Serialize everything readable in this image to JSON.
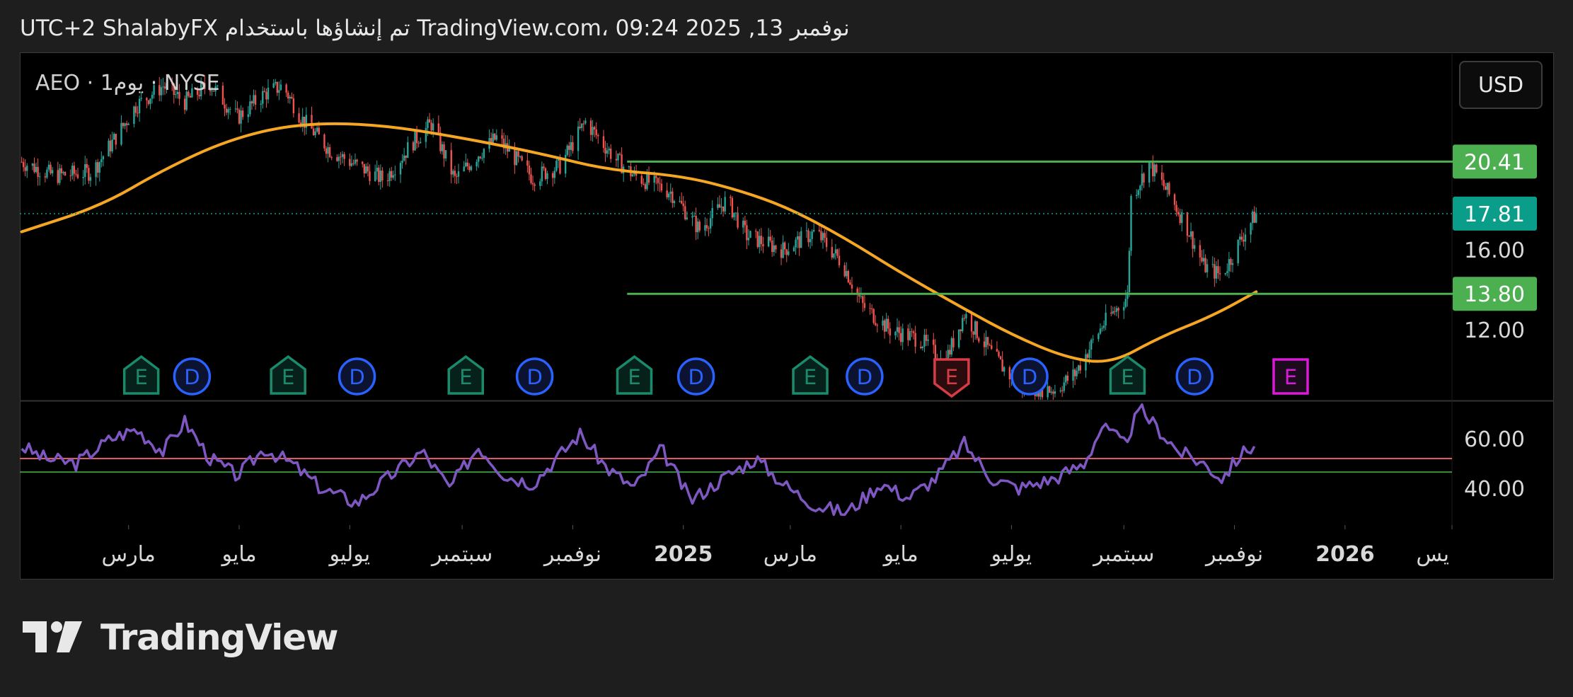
{
  "header": {
    "caption": "UTC+2 ShalabyFX تم إنشاؤها باستخدام TradingView.com، 09:24 2025 ,13 نوفمبر"
  },
  "symbol_label": "AEO · 1يوم · NYSE",
  "currency": "USD",
  "footer": {
    "brand": "TradingView"
  },
  "colors": {
    "up": "#26a69a",
    "down": "#ef5350",
    "ma": "#f5a623",
    "level_lines": "#4caf50",
    "rsi": "#7e57c2",
    "rsi_upper": "#e05a66",
    "rsi_lower": "#3e8e41",
    "earnings": "#1b8a6b",
    "earnings_future": "#d81bd8",
    "earnings_miss": "#d73c45",
    "dividend": "#2962ff",
    "current_price_tag": "#0a9d8a"
  },
  "chart_data": {
    "type": "candlestick",
    "symbol": "AEO",
    "exchange": "NYSE",
    "interval": "1يوم",
    "price_axis": {
      "ticks": [
        "16.00",
        "12.00"
      ],
      "ylim": [
        8.5,
        25.8
      ]
    },
    "x_axis": {
      "labels": [
        "مارس",
        "مايو",
        "يوليو",
        "سبتمبر",
        "نوفمبر",
        "2025",
        "مارس",
        "مايو",
        "يوليو",
        "سبتمبر",
        "نوفمبر",
        "2026",
        "يس"
      ],
      "label_dates": [
        "2024-03-01",
        "2024-05-01",
        "2024-07-01",
        "2024-09-01",
        "2024-11-01",
        "2025-01-01",
        "2025-03-01",
        "2025-05-01",
        "2025-07-01",
        "2025-09-01",
        "2025-11-01",
        "2026-01-01",
        "2026-03-01"
      ],
      "bold": [
        "2025",
        "2026"
      ],
      "range": [
        "2024-01-01",
        "2026-03-01"
      ]
    },
    "series": {
      "close_path": [
        [
          "2024-01-02",
          20.4
        ],
        [
          "2024-01-20",
          19.7
        ],
        [
          "2024-02-10",
          19.9
        ],
        [
          "2024-02-25",
          21.9
        ],
        [
          "2024-03-05",
          23.2
        ],
        [
          "2024-03-20",
          24.2
        ],
        [
          "2024-04-01",
          23.4
        ],
        [
          "2024-04-15",
          24.3
        ],
        [
          "2024-04-30",
          22.6
        ],
        [
          "2024-05-15",
          23.8
        ],
        [
          "2024-05-25",
          24.2
        ],
        [
          "2024-06-05",
          22.5
        ],
        [
          "2024-06-20",
          21.0
        ],
        [
          "2024-07-05",
          20.2
        ],
        [
          "2024-07-20",
          19.5
        ],
        [
          "2024-08-05",
          21.4
        ],
        [
          "2024-08-15",
          22.3
        ],
        [
          "2024-08-28",
          19.5
        ],
        [
          "2024-09-10",
          20.8
        ],
        [
          "2024-09-20",
          21.6
        ],
        [
          "2024-10-10",
          19.6
        ],
        [
          "2024-10-25",
          20.2
        ],
        [
          "2024-11-08",
          22.4
        ],
        [
          "2024-11-25",
          20.5
        ],
        [
          "2024-12-05",
          19.7
        ],
        [
          "2024-12-25",
          18.9
        ],
        [
          "2025-01-10",
          17.0
        ],
        [
          "2025-01-25",
          18.5
        ],
        [
          "2025-02-05",
          16.7
        ],
        [
          "2025-02-25",
          16.0
        ],
        [
          "2025-03-15",
          16.9
        ],
        [
          "2025-03-30",
          15.3
        ],
        [
          "2025-04-10",
          13.2
        ],
        [
          "2025-04-25",
          12.0
        ],
        [
          "2025-05-12",
          11.5
        ],
        [
          "2025-05-25",
          10.3
        ],
        [
          "2025-06-05",
          12.8
        ],
        [
          "2025-06-20",
          10.8
        ],
        [
          "2025-07-05",
          9.2
        ],
        [
          "2025-07-25",
          9.0
        ],
        [
          "2025-08-05",
          9.8
        ],
        [
          "2025-08-20",
          12.2
        ],
        [
          "2025-09-03",
          13.7
        ],
        [
          "2025-09-05",
          18.6
        ],
        [
          "2025-09-15",
          20.3
        ],
        [
          "2025-09-25",
          18.9
        ],
        [
          "2025-10-05",
          17.3
        ],
        [
          "2025-10-15",
          15.2
        ],
        [
          "2025-10-25",
          14.7
        ],
        [
          "2025-11-05",
          16.6
        ],
        [
          "2025-11-13",
          17.81
        ]
      ],
      "moving_average": [
        [
          "2024-01-02",
          16.9
        ],
        [
          "2024-02-15",
          18.2
        ],
        [
          "2024-03-20",
          20.0
        ],
        [
          "2024-04-25",
          21.5
        ],
        [
          "2024-06-01",
          22.3
        ],
        [
          "2024-07-15",
          22.3
        ],
        [
          "2024-09-01",
          21.6
        ],
        [
          "2024-10-15",
          20.8
        ],
        [
          "2024-11-20",
          20.0
        ],
        [
          "2024-12-31",
          19.7
        ],
        [
          "2025-01-31",
          19.0
        ],
        [
          "2025-02-28",
          18.1
        ],
        [
          "2025-03-31",
          16.6
        ],
        [
          "2025-04-30",
          14.9
        ],
        [
          "2025-05-31",
          13.3
        ],
        [
          "2025-06-30",
          11.8
        ],
        [
          "2025-07-31",
          10.6
        ],
        [
          "2025-08-25",
          10.3
        ],
        [
          "2025-09-20",
          11.6
        ],
        [
          "2025-10-20",
          12.7
        ],
        [
          "2025-11-13",
          13.9
        ]
      ]
    },
    "current_price": 17.81,
    "horizontal_levels": [
      {
        "price": 20.41,
        "label": "20.41",
        "from": "2024-12-01"
      },
      {
        "price": 13.8,
        "label": "13.80",
        "from": "2024-12-01"
      }
    ],
    "events": [
      {
        "type": "E",
        "date": "2024-03-08"
      },
      {
        "type": "D",
        "date": "2024-04-05"
      },
      {
        "type": "E",
        "date": "2024-05-28"
      },
      {
        "type": "D",
        "date": "2024-07-05"
      },
      {
        "type": "E",
        "date": "2024-09-03"
      },
      {
        "type": "D",
        "date": "2024-10-11"
      },
      {
        "type": "E",
        "date": "2024-12-05"
      },
      {
        "type": "D",
        "date": "2025-01-08"
      },
      {
        "type": "E",
        "date": "2025-03-12"
      },
      {
        "type": "D",
        "date": "2025-04-11"
      },
      {
        "type": "E",
        "date": "2025-05-29",
        "variant": "miss"
      },
      {
        "type": "D",
        "date": "2025-07-11"
      },
      {
        "type": "E",
        "date": "2025-09-03"
      },
      {
        "type": "D",
        "date": "2025-10-10"
      },
      {
        "type": "E",
        "date": "2025-12-02",
        "variant": "future"
      }
    ],
    "rsi": {
      "ticks": [
        "60.00",
        "40.00"
      ],
      "ylim": [
        25,
        75
      ],
      "upper_level": 52,
      "lower_level": 46.5,
      "path": [
        [
          "2024-01-02",
          57
        ],
        [
          "2024-01-15",
          52
        ],
        [
          "2024-02-01",
          50
        ],
        [
          "2024-02-20",
          60
        ],
        [
          "2024-03-05",
          64
        ],
        [
          "2024-03-20",
          55
        ],
        [
          "2024-04-01",
          67
        ],
        [
          "2024-04-15",
          52
        ],
        [
          "2024-04-30",
          45
        ],
        [
          "2024-05-15",
          56
        ],
        [
          "2024-05-30",
          50
        ],
        [
          "2024-06-15",
          40
        ],
        [
          "2024-07-05",
          34
        ],
        [
          "2024-07-25",
          46
        ],
        [
          "2024-08-10",
          55
        ],
        [
          "2024-08-25",
          40
        ],
        [
          "2024-09-10",
          57
        ],
        [
          "2024-09-25",
          45
        ],
        [
          "2024-10-10",
          42
        ],
        [
          "2024-11-05",
          62
        ],
        [
          "2024-11-20",
          48
        ],
        [
          "2024-12-05",
          40
        ],
        [
          "2024-12-20",
          56
        ],
        [
          "2025-01-05",
          35
        ],
        [
          "2025-01-25",
          45
        ],
        [
          "2025-02-10",
          52
        ],
        [
          "2025-02-28",
          40
        ],
        [
          "2025-03-15",
          33
        ],
        [
          "2025-04-01",
          30
        ],
        [
          "2025-04-20",
          42
        ],
        [
          "2025-05-05",
          36
        ],
        [
          "2025-05-20",
          44
        ],
        [
          "2025-06-05",
          58
        ],
        [
          "2025-06-20",
          44
        ],
        [
          "2025-07-05",
          40
        ],
        [
          "2025-07-25",
          44
        ],
        [
          "2025-08-10",
          50
        ],
        [
          "2025-08-20",
          65
        ],
        [
          "2025-09-01",
          58
        ],
        [
          "2025-09-10",
          72
        ],
        [
          "2025-09-20",
          64
        ],
        [
          "2025-10-01",
          55
        ],
        [
          "2025-10-15",
          50
        ],
        [
          "2025-10-25",
          44
        ],
        [
          "2025-11-05",
          54
        ],
        [
          "2025-11-13",
          58
        ]
      ]
    }
  }
}
